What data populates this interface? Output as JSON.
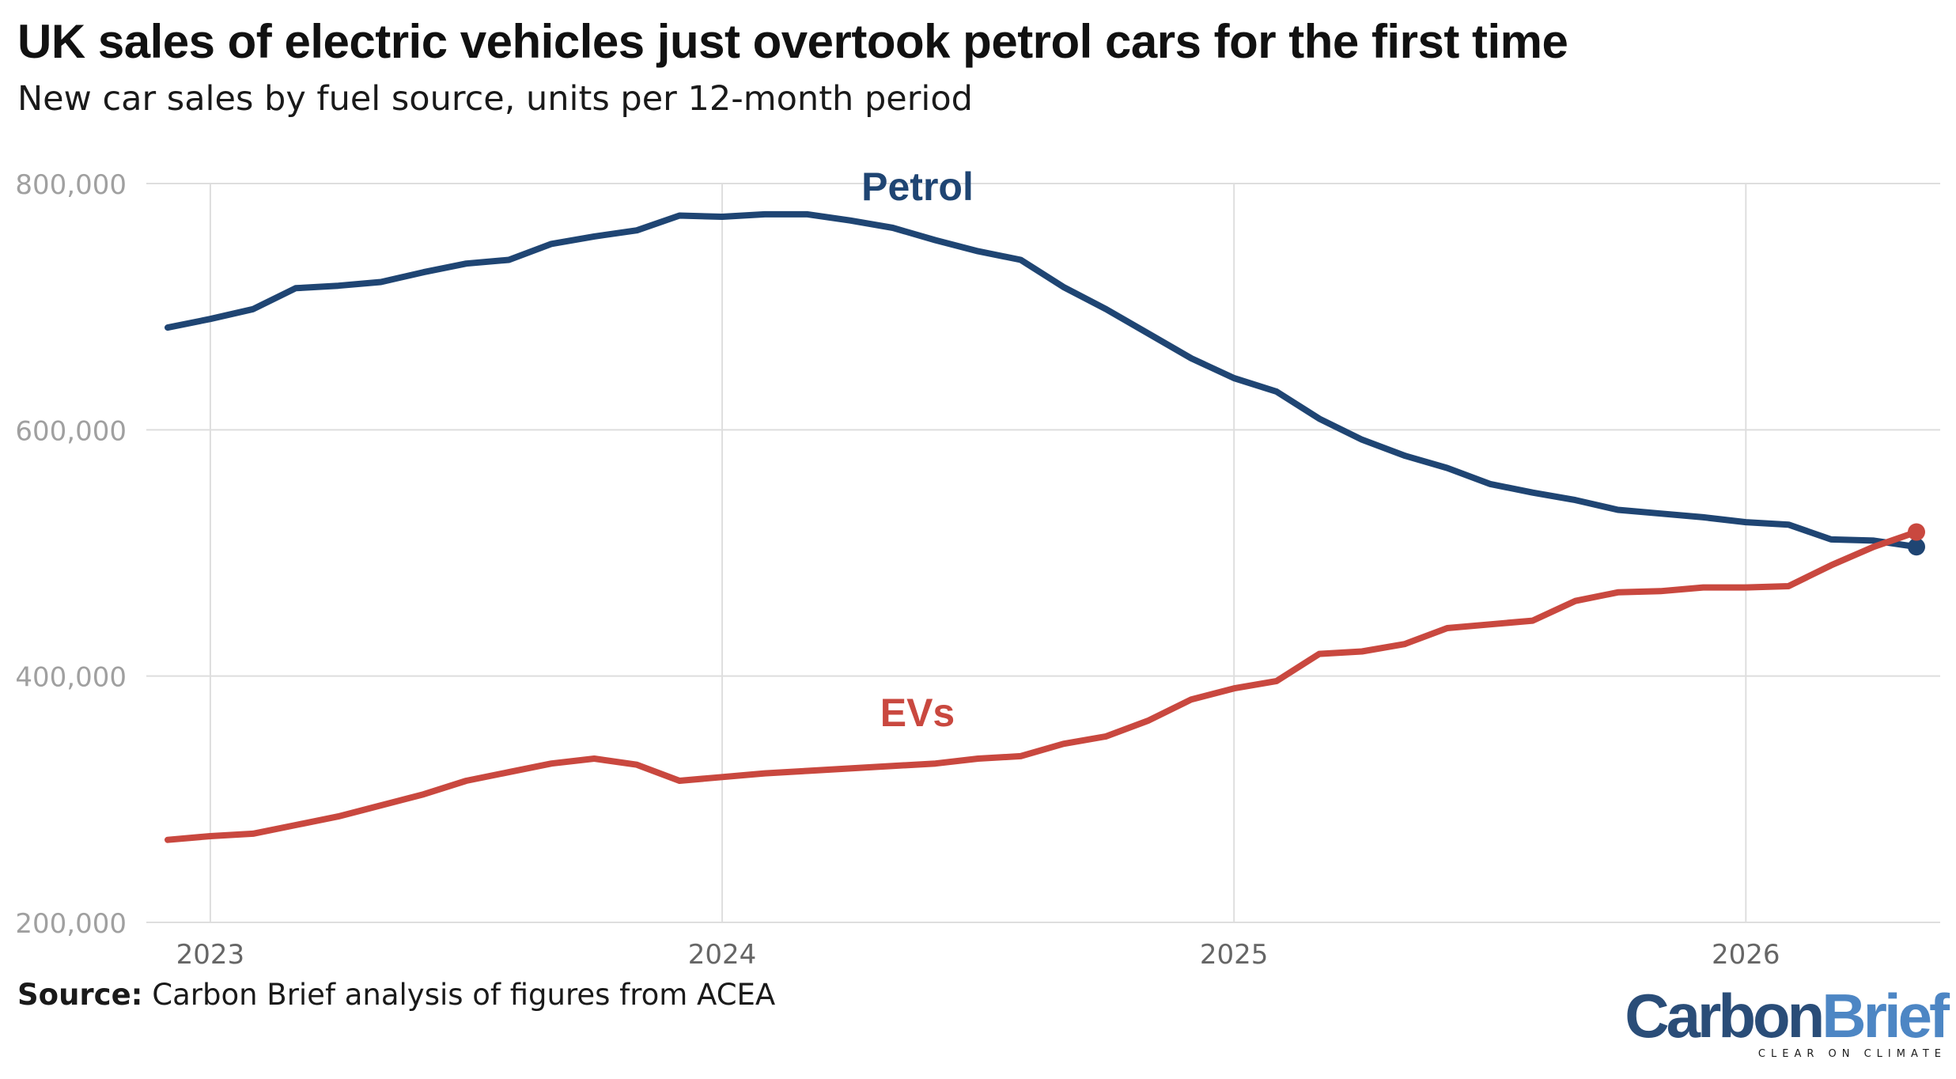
{
  "header": {
    "title": "UK sales of electric vehicles just overtook petrol cars for the first time",
    "subtitle": "New car sales by fuel source, units per 12-month period"
  },
  "footer": {
    "source_label": "Source:",
    "source_text": "Carbon Brief analysis of figures from ACEA"
  },
  "logo": {
    "word1": "Carbon",
    "word2": "Brief",
    "tagline": "CLEAR ON CLIMATE",
    "colors": {
      "word1": "#2a4d78",
      "word2": "#4d86c4"
    }
  },
  "chart_data": {
    "type": "line",
    "title": "UK sales of electric vehicles just overtook petrol cars for the first time",
    "subtitle": "New car sales by fuel source, units per 12-month period",
    "xlabel": "",
    "ylabel": "",
    "x": [
      "2022-12",
      "2023-01",
      "2023-02",
      "2023-03",
      "2023-04",
      "2023-05",
      "2023-06",
      "2023-07",
      "2023-08",
      "2023-09",
      "2023-10",
      "2023-11",
      "2023-12",
      "2024-01",
      "2024-02",
      "2024-03",
      "2024-04",
      "2024-05",
      "2024-06",
      "2024-07",
      "2024-08",
      "2024-09",
      "2024-10",
      "2024-11",
      "2024-12",
      "2025-01",
      "2025-02",
      "2025-03",
      "2025-04",
      "2025-05",
      "2025-06",
      "2025-07",
      "2025-08",
      "2025-09",
      "2025-10",
      "2025-11",
      "2025-12",
      "2026-01",
      "2026-02",
      "2026-03",
      "2026-04",
      "2026-05"
    ],
    "xlim": [
      "2022-12",
      "2026-05"
    ],
    "x_ticks": [
      "2023",
      "2024",
      "2025",
      "2026"
    ],
    "x_tick_dates": [
      "2023-01",
      "2024-01",
      "2025-01",
      "2026-01"
    ],
    "ylim": [
      200000,
      800000
    ],
    "y_ticks": [
      200000,
      400000,
      600000,
      800000
    ],
    "y_tick_labels": [
      "200,000",
      "400,000",
      "600,000",
      "800,000"
    ],
    "grid": true,
    "series": [
      {
        "name": "Petrol",
        "color": "#1f4573",
        "values": [
          683000,
          690000,
          698000,
          715000,
          717000,
          720000,
          728000,
          735000,
          738000,
          751000,
          757000,
          762000,
          774000,
          773000,
          775000,
          775000,
          770000,
          764000,
          754000,
          745000,
          738000,
          716000,
          698000,
          678000,
          658000,
          642000,
          631000,
          609000,
          592000,
          579000,
          569000,
          556000,
          549000,
          543000,
          535000,
          532000,
          529000,
          525000,
          523000,
          511000,
          510000,
          505000
        ]
      },
      {
        "name": "EVs",
        "color": "#c9483f",
        "values": [
          267000,
          270000,
          272000,
          279000,
          286000,
          295000,
          304000,
          315000,
          322000,
          329000,
          333000,
          328000,
          315000,
          318000,
          321000,
          323000,
          325000,
          327000,
          329000,
          333000,
          335000,
          345000,
          351000,
          364000,
          381000,
          390000,
          396000,
          418000,
          420000,
          426000,
          439000,
          442000,
          445000,
          461000,
          468000,
          469000,
          472000,
          472000,
          473000,
          490000,
          505000,
          517000
        ]
      }
    ]
  }
}
